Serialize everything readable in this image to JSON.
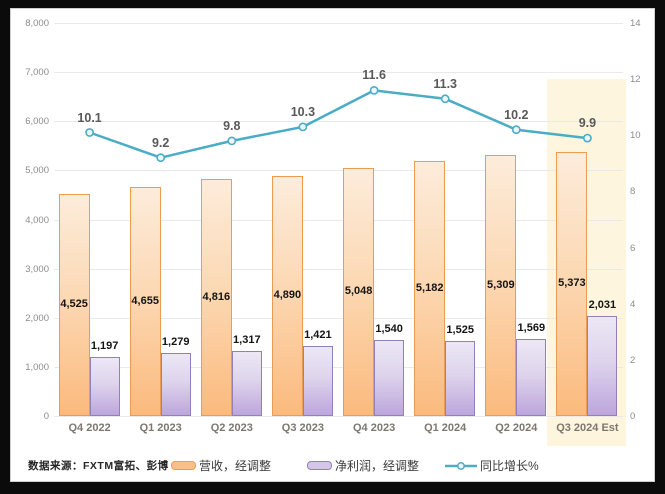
{
  "frame": {
    "outer_background": "#0b0b0b",
    "panel_background": "#ffffff",
    "highlight_band_color": "#fdf5dd"
  },
  "source_note": "数据来源：FXTM富拓、彭博",
  "legend": {
    "items": [
      {
        "label": "营收，经调整",
        "type": "bar",
        "fill": "#fbc08a",
        "border": "#ec9c52"
      },
      {
        "label": "净利润，经调整",
        "type": "bar",
        "fill": "#d4c6e8",
        "border": "#9180bb"
      },
      {
        "label": "同比增长%",
        "type": "line",
        "color": "#4bacc6"
      }
    ]
  },
  "chart_data": {
    "type": "bar",
    "subtype": "grouped-bars-with-line",
    "categories": [
      "Q4 2022",
      "Q1 2023",
      "Q2 2023",
      "Q3 2023",
      "Q4 2023",
      "Q1 2024",
      "Q2 2024",
      "Q3 2024 Est"
    ],
    "series": [
      {
        "name": "营收，经调整",
        "type": "bar",
        "axis": "left",
        "values": [
          4525,
          4655,
          4816,
          4890,
          5048,
          5182,
          5309,
          5373
        ],
        "labels": [
          "4,525",
          "4,655",
          "4,816",
          "4,890",
          "5,048",
          "5,182",
          "5,309",
          "5,373"
        ]
      },
      {
        "name": "净利润，经调整",
        "type": "bar",
        "axis": "left",
        "values": [
          1197,
          1279,
          1317,
          1421,
          1540,
          1525,
          1569,
          2031
        ],
        "labels": [
          "1,197",
          "1,279",
          "1,317",
          "1,421",
          "1,540",
          "1,525",
          "1,569",
          "2,031"
        ]
      },
      {
        "name": "同比增长%",
        "type": "line",
        "axis": "right",
        "values": [
          10.1,
          9.2,
          9.8,
          10.3,
          11.6,
          11.3,
          10.2,
          9.9
        ],
        "labels": [
          "10.1",
          "9.2",
          "9.8",
          "10.3",
          "11.6",
          "11.3",
          "10.2",
          "9.9"
        ],
        "line_color": "#4bacc6",
        "marker_fill": "#edf6fa"
      }
    ],
    "left_axis": {
      "min": 0,
      "max": 8000,
      "step": 1000,
      "ticks": [
        "0",
        "1,000",
        "2,000",
        "3,000",
        "4,000",
        "5,000",
        "6,000",
        "7,000",
        "8,000"
      ]
    },
    "right_axis": {
      "min": 0,
      "max": 14,
      "step": 2,
      "ticks": [
        "0",
        "2",
        "4",
        "6",
        "8",
        "10",
        "12",
        "14"
      ]
    },
    "grid": true,
    "legend_position": "bottom",
    "highlight_category": "Q3 2024 Est",
    "title": "",
    "xlabel": "",
    "ylabel": ""
  }
}
